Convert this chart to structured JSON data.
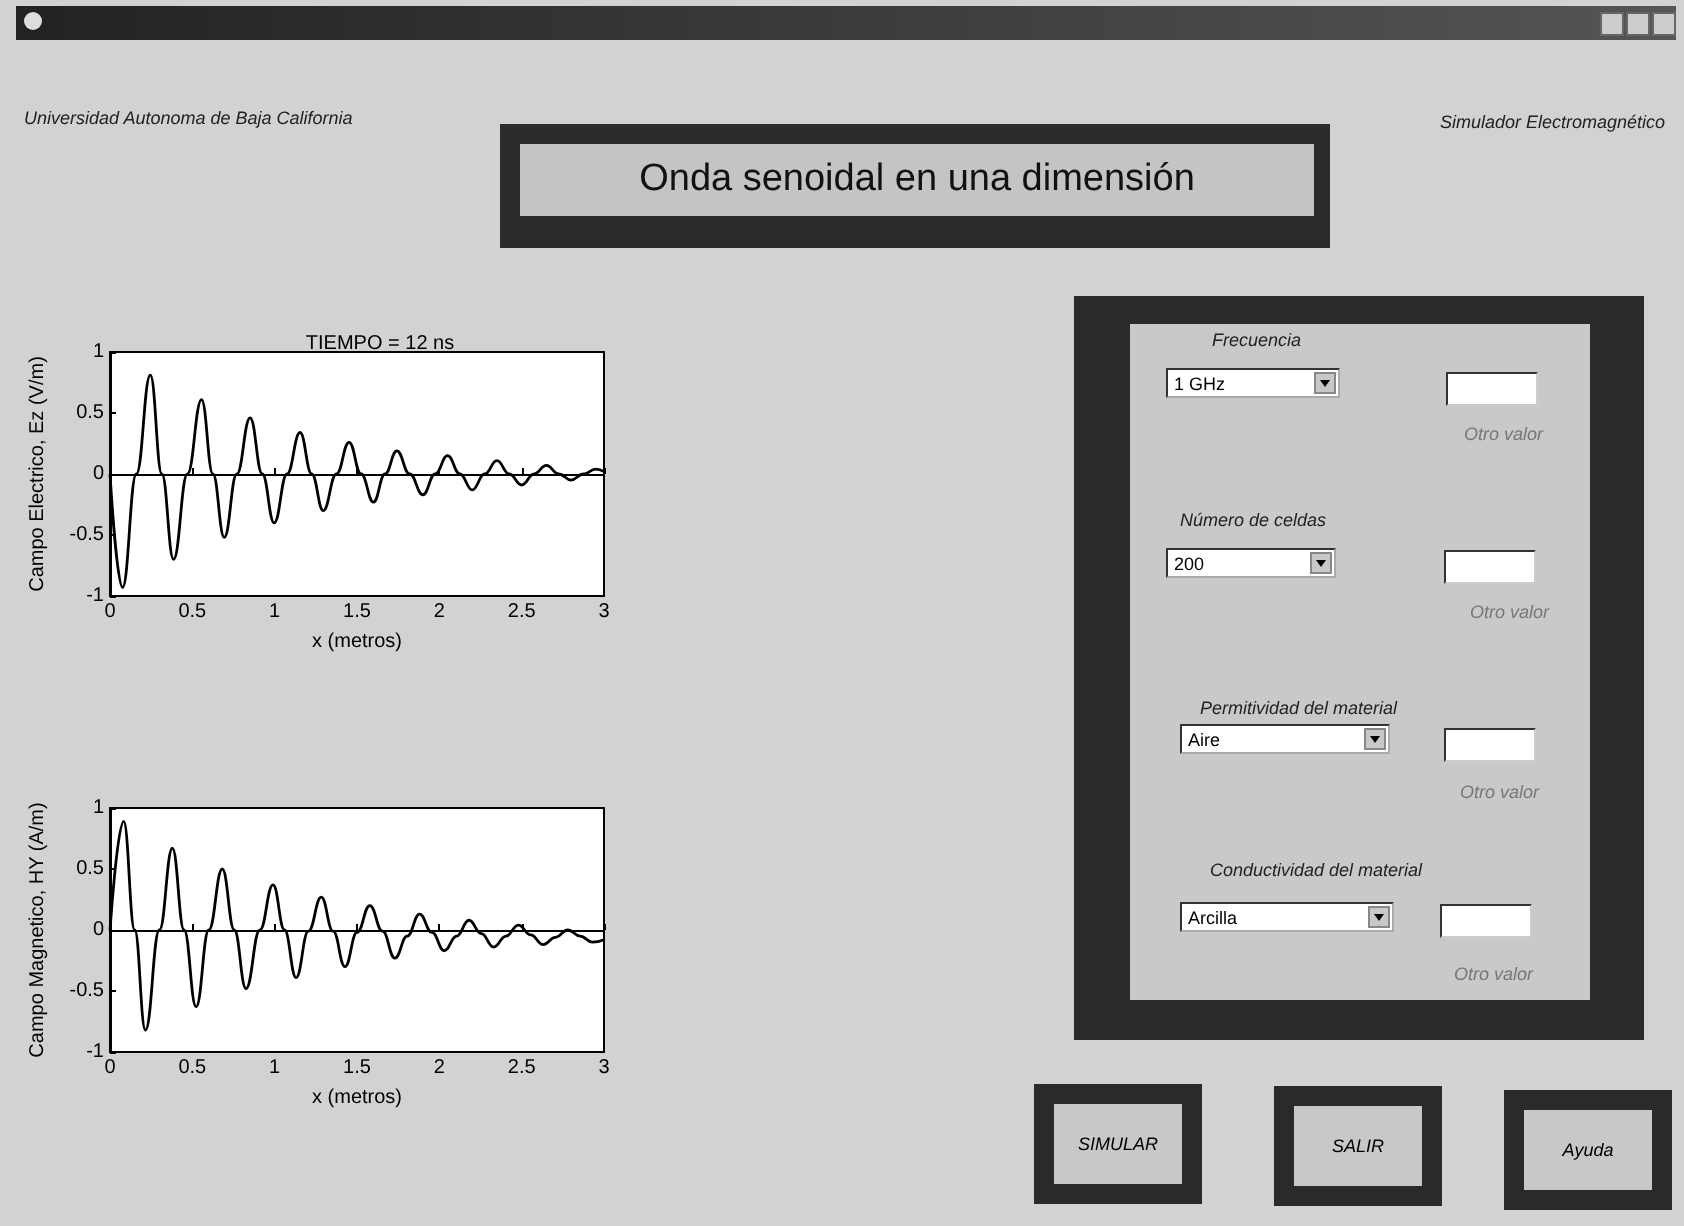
{
  "chart_data": [
    {
      "type": "line",
      "title": "TIEMPO = 12 ns",
      "xlabel": "x (metros)",
      "ylabel": "Campo Electrico, Ez (V/m)",
      "x": [
        0,
        0.076,
        0.16,
        0.245,
        0.315,
        0.386,
        0.47,
        0.556,
        0.625,
        0.694,
        0.77,
        0.851,
        0.925,
        0.997,
        1.075,
        1.154,
        1.225,
        1.295,
        1.375,
        1.452,
        1.525,
        1.6,
        1.67,
        1.742,
        1.82,
        1.9,
        1.975,
        2.05,
        2.125,
        2.2,
        2.275,
        2.35,
        2.425,
        2.5,
        2.575,
        2.65,
        2.725,
        2.8,
        2.875,
        2.95,
        3
      ],
      "series": [
        {
          "color": "#000000",
          "values": [
            0,
            -0.93,
            0,
            0.81,
            0,
            -0.7,
            0,
            0.61,
            0,
            -0.52,
            0,
            0.46,
            0,
            -0.4,
            0,
            0.34,
            0,
            -0.3,
            0,
            0.26,
            0,
            -0.23,
            0,
            0.19,
            0,
            -0.17,
            0,
            0.15,
            0,
            -0.13,
            0,
            0.11,
            0,
            -0.09,
            0,
            0.07,
            0,
            -0.05,
            0,
            0.04,
            0.02
          ]
        }
      ],
      "xlim": [
        0,
        3
      ],
      "ylim": [
        -1,
        1
      ],
      "xticks": [
        0,
        0.5,
        1,
        1.5,
        2,
        2.5,
        3
      ],
      "yticks": [
        -1,
        -0.5,
        0,
        0.5,
        1
      ]
    },
    {
      "type": "line",
      "xlabel": "x (metros)",
      "ylabel": "Campo Magnetico, HY (A/m)",
      "x": [
        0,
        0.083,
        0.15,
        0.215,
        0.3,
        0.379,
        0.45,
        0.523,
        0.6,
        0.682,
        0.755,
        0.826,
        0.91,
        0.99,
        1.06,
        1.13,
        1.205,
        1.283,
        1.355,
        1.427,
        1.5,
        1.578,
        1.655,
        1.73,
        1.805,
        1.88,
        1.955,
        2.03,
        2.105,
        2.18,
        2.255,
        2.33,
        2.405,
        2.48,
        2.555,
        2.63,
        2.705,
        2.78,
        2.855,
        2.93,
        3
      ],
      "series": [
        {
          "color": "#000000",
          "values": [
            0,
            0.89,
            0,
            -0.82,
            0,
            0.67,
            0,
            -0.63,
            0,
            0.5,
            0,
            -0.48,
            0,
            0.37,
            0,
            -0.39,
            -0.01,
            0.27,
            -0.01,
            -0.3,
            -0.02,
            0.2,
            -0.01,
            -0.23,
            -0.05,
            0.13,
            -0.02,
            -0.17,
            -0.05,
            0.08,
            -0.03,
            -0.14,
            -0.05,
            0.04,
            -0.04,
            -0.12,
            -0.06,
            0,
            -0.05,
            -0.1,
            -0.08
          ]
        }
      ],
      "xlim": [
        0,
        3
      ],
      "ylim": [
        -1,
        1
      ],
      "xticks": [
        0,
        0.5,
        1,
        1.5,
        2,
        2.5,
        3
      ],
      "yticks": [
        -1,
        -0.5,
        0,
        0.5,
        1
      ]
    },
    {
      "type": "other",
      "title": "Onda senoidal en una dimensión",
      "annotations": [
        "Universidad Autonoma de Baja California",
        "Simulador Electromagnético",
        "Frecuencia",
        "1 GHz",
        "Otro valor",
        "Número de celdas",
        "200",
        "Otro valor",
        "Permitividad del material",
        "Aire",
        "Otro valor",
        "Conductividad del material",
        "Arcilla",
        "Otro valor",
        "SIMULAR",
        "SALIR",
        "Ayuda"
      ]
    }
  ]
}
